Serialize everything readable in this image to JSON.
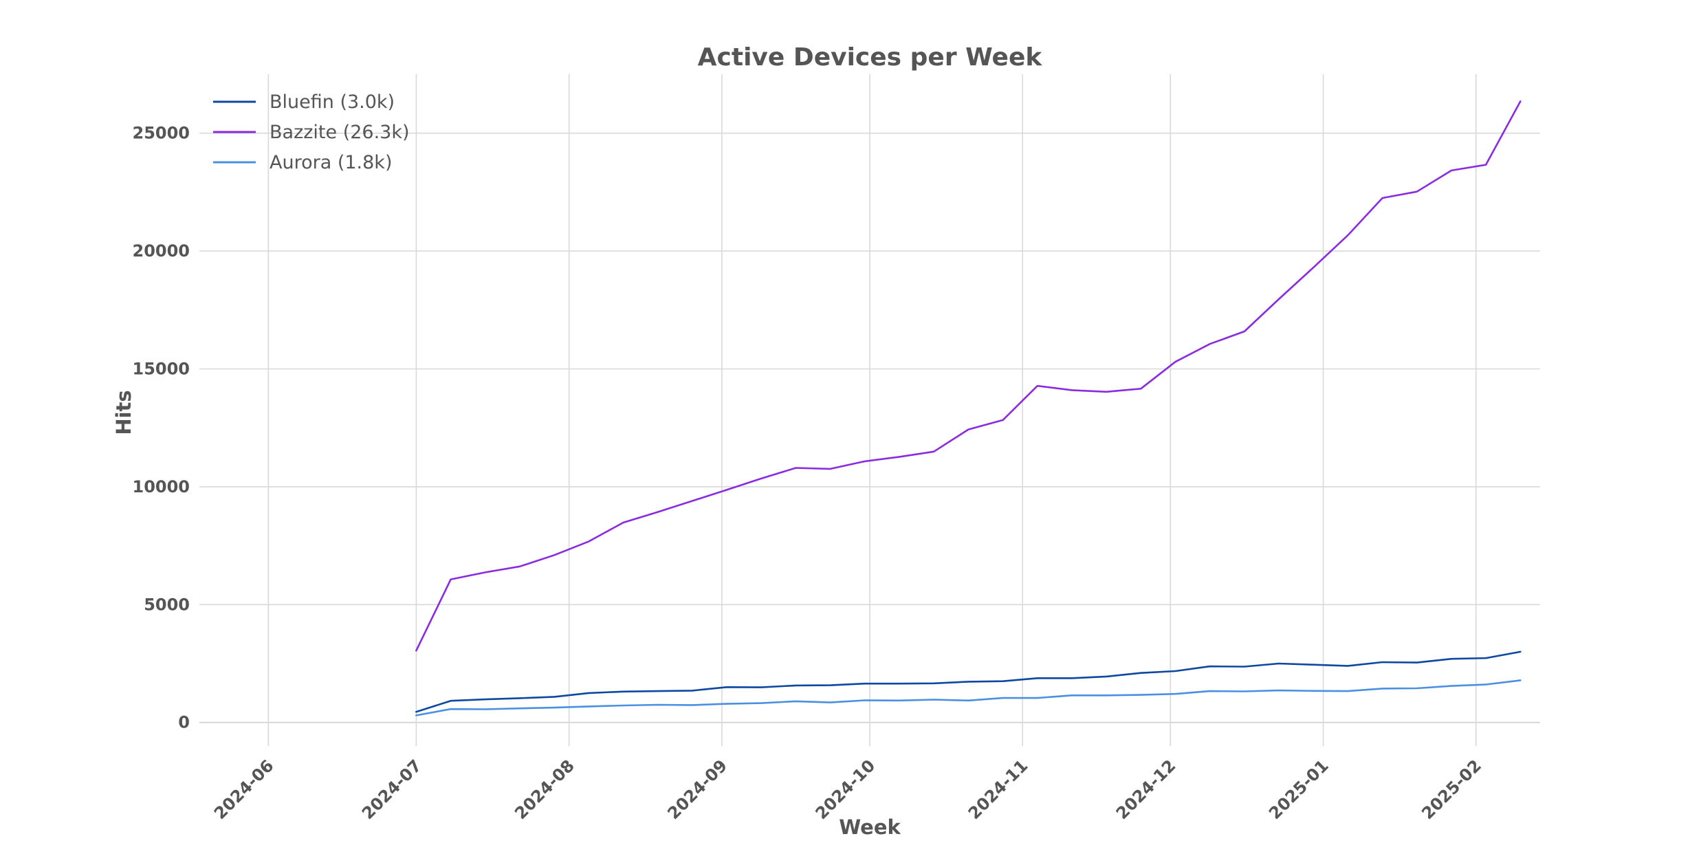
{
  "chart_data": {
    "type": "line",
    "title": "Active Devices per Week",
    "xlabel": "Week",
    "ylabel": "Hits",
    "x_ticks": [
      "2024-06-01",
      "2024-07-01",
      "2024-08-01",
      "2024-09-01",
      "2024-10-01",
      "2024-11-01",
      "2024-12-01",
      "2025-01-01",
      "2025-02-01"
    ],
    "x_tick_labels": [
      "2024-06",
      "2024-07",
      "2024-08",
      "2024-09",
      "2024-10",
      "2024-11",
      "2024-12",
      "2025-01",
      "2025-02"
    ],
    "y_ticks": [
      0,
      5000,
      10000,
      15000,
      20000,
      25000
    ],
    "y_tick_labels": [
      "0",
      "5000",
      "10000",
      "15000",
      "20000",
      "25000"
    ],
    "xlim": [
      "2024-05-18",
      "2025-02-14"
    ],
    "ylim": [
      -1000,
      27500
    ],
    "grid": true,
    "legend_position": "top-left",
    "x": [
      "2024-07-01",
      "2024-07-08",
      "2024-07-15",
      "2024-07-22",
      "2024-07-29",
      "2024-08-05",
      "2024-08-12",
      "2024-08-19",
      "2024-08-26",
      "2024-09-02",
      "2024-09-09",
      "2024-09-16",
      "2024-09-23",
      "2024-09-30",
      "2024-10-07",
      "2024-10-14",
      "2024-10-21",
      "2024-10-28",
      "2024-11-04",
      "2024-11-11",
      "2024-11-18",
      "2024-11-25",
      "2024-12-02",
      "2024-12-09",
      "2024-12-16",
      "2024-12-23",
      "2024-12-30",
      "2025-01-06",
      "2025-01-13",
      "2025-01-20",
      "2025-01-27",
      "2025-02-03",
      "2025-02-10"
    ],
    "series": [
      {
        "name": "Bluefin (3.0k)",
        "color": "#0d47a1",
        "values": [
          450,
          920,
          980,
          1030,
          1090,
          1250,
          1310,
          1330,
          1350,
          1500,
          1490,
          1570,
          1580,
          1650,
          1650,
          1660,
          1730,
          1750,
          1880,
          1880,
          1950,
          2100,
          2180,
          2380,
          2370,
          2500,
          2450,
          2400,
          2560,
          2540,
          2700,
          2730,
          3000
        ]
      },
      {
        "name": "Bazzite (26.3k)",
        "color": "#8a2be2",
        "values": [
          3050,
          6070,
          6370,
          6620,
          7100,
          7680,
          8480,
          8930,
          9400,
          9870,
          10350,
          10800,
          10760,
          11080,
          11270,
          11490,
          12430,
          12830,
          14280,
          14100,
          14030,
          14160,
          15300,
          16060,
          16590,
          17960,
          19300,
          20670,
          22250,
          22520,
          23420,
          23660,
          26350
        ]
      },
      {
        "name": "Aurora (1.8k)",
        "color": "#4a90e2",
        "values": [
          300,
          570,
          560,
          600,
          630,
          680,
          720,
          750,
          740,
          790,
          820,
          900,
          850,
          940,
          930,
          970,
          930,
          1040,
          1040,
          1150,
          1150,
          1170,
          1210,
          1330,
          1320,
          1360,
          1340,
          1330,
          1440,
          1450,
          1550,
          1610,
          1790
        ]
      }
    ]
  }
}
